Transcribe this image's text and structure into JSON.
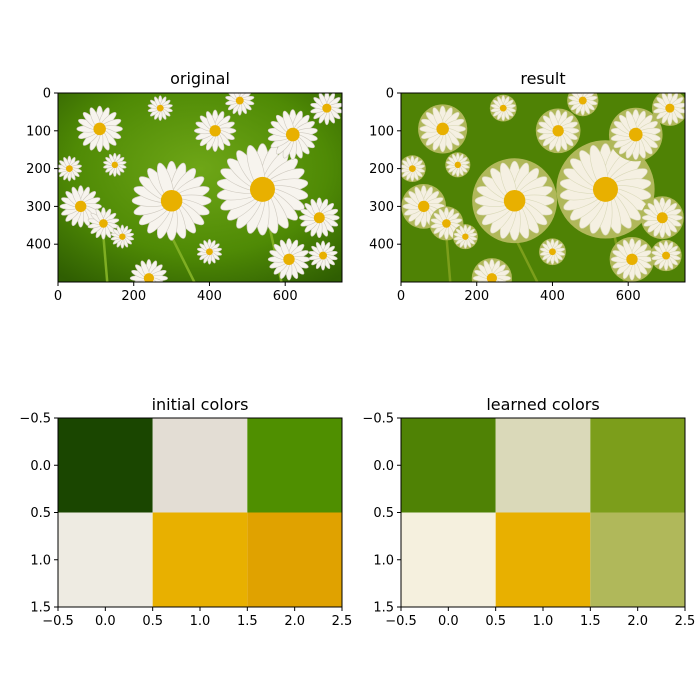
{
  "colors": {
    "green_dark": "#1a4600",
    "grass_green": "#4f8a05",
    "olive": "#7c9e1b",
    "light_olive": "#b0b85a",
    "cream": "#dad9b9",
    "petal_white": "#f5f0e2",
    "yellow": "#e8b000",
    "dark_yellow": "#e0a200"
  },
  "chart_data": [
    {
      "type": "image",
      "title": "original",
      "xlim": [
        0,
        750
      ],
      "ylim": [
        500,
        0
      ],
      "xticks": [
        0,
        200,
        400,
        600
      ],
      "yticks": [
        0,
        100,
        200,
        300,
        400
      ],
      "content": "photograph of white daisies with yellow centres on a green background"
    },
    {
      "type": "image",
      "title": "result",
      "xlim": [
        0,
        750
      ],
      "ylim": [
        500,
        0
      ],
      "xticks": [
        0,
        200,
        400,
        600
      ],
      "yticks": [
        0,
        100,
        200,
        300,
        400
      ],
      "content": "same photo quantized to the learned palette"
    },
    {
      "type": "heatmap",
      "title": "initial colors",
      "xlim": [
        -0.5,
        2.5
      ],
      "ylim": [
        1.5,
        -0.5
      ],
      "xticks": [
        -0.5,
        0.0,
        0.5,
        1.0,
        1.5,
        2.0,
        2.5
      ],
      "yticks": [
        -0.5,
        0.0,
        0.5,
        1.0,
        1.5
      ],
      "cells": [
        [
          "#1a4600",
          "#e3ddd4",
          "#4f8f00"
        ],
        [
          "#eeebe2",
          "#e8b000",
          "#e0a200"
        ]
      ]
    },
    {
      "type": "heatmap",
      "title": "learned colors",
      "xlim": [
        -0.5,
        2.5
      ],
      "ylim": [
        1.5,
        -0.5
      ],
      "xticks": [
        -0.5,
        0.0,
        0.5,
        1.0,
        1.5,
        2.0,
        2.5
      ],
      "yticks": [
        -0.5,
        0.0,
        0.5,
        1.0,
        1.5
      ],
      "cells": [
        [
          "#4f8205",
          "#dad9b9",
          "#7c9e1b"
        ],
        [
          "#f5f0de",
          "#e8b000",
          "#b0b85a"
        ]
      ]
    }
  ]
}
